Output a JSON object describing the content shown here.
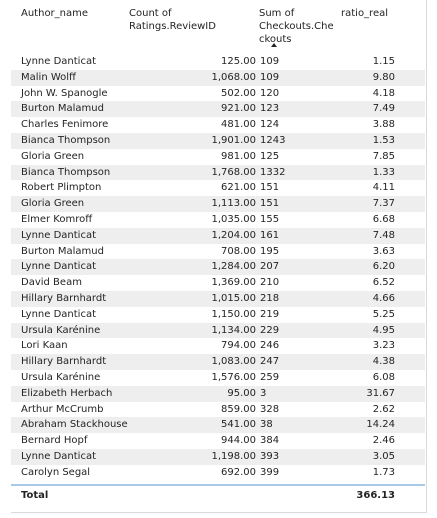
{
  "table": {
    "headers": {
      "author": "Author_name",
      "count": "Count of Ratings.ReviewID",
      "sum": "Sum of\nCheckouts.Che\nckouts",
      "ratio": "ratio_real"
    },
    "rows": [
      {
        "author": "Lynne Danticat",
        "count": "125.00",
        "sum": "109",
        "ratio": "1.15"
      },
      {
        "author": "Malin Wolff",
        "count": "1,068.00",
        "sum": "109",
        "ratio": "9.80"
      },
      {
        "author": "John W. Spanogle",
        "count": "502.00",
        "sum": "120",
        "ratio": "4.18"
      },
      {
        "author": "Burton Malamud",
        "count": "921.00",
        "sum": "123",
        "ratio": "7.49"
      },
      {
        "author": "Charles Fenimore",
        "count": "481.00",
        "sum": "124",
        "ratio": "3.88"
      },
      {
        "author": "Bianca Thompson",
        "count": "1,901.00",
        "sum": "1243",
        "ratio": "1.53"
      },
      {
        "author": "Gloria Green",
        "count": "981.00",
        "sum": "125",
        "ratio": "7.85"
      },
      {
        "author": "Bianca Thompson",
        "count": "1,768.00",
        "sum": "1332",
        "ratio": "1.33"
      },
      {
        "author": "Robert Plimpton",
        "count": "621.00",
        "sum": "151",
        "ratio": "4.11"
      },
      {
        "author": "Gloria Green",
        "count": "1,113.00",
        "sum": "151",
        "ratio": "7.37"
      },
      {
        "author": "Elmer Komroff",
        "count": "1,035.00",
        "sum": "155",
        "ratio": "6.68"
      },
      {
        "author": "Lynne Danticat",
        "count": "1,204.00",
        "sum": "161",
        "ratio": "7.48"
      },
      {
        "author": "Burton Malamud",
        "count": "708.00",
        "sum": "195",
        "ratio": "3.63"
      },
      {
        "author": "Lynne Danticat",
        "count": "1,284.00",
        "sum": "207",
        "ratio": "6.20"
      },
      {
        "author": "David Beam",
        "count": "1,369.00",
        "sum": "210",
        "ratio": "6.52"
      },
      {
        "author": "Hillary Barnhardt",
        "count": "1,015.00",
        "sum": "218",
        "ratio": "4.66"
      },
      {
        "author": "Lynne Danticat",
        "count": "1,150.00",
        "sum": "219",
        "ratio": "5.25"
      },
      {
        "author": "Ursula Karénine",
        "count": "1,134.00",
        "sum": "229",
        "ratio": "4.95"
      },
      {
        "author": "Lori Kaan",
        "count": "794.00",
        "sum": "246",
        "ratio": "3.23"
      },
      {
        "author": "Hillary Barnhardt",
        "count": "1,083.00",
        "sum": "247",
        "ratio": "4.38"
      },
      {
        "author": "Ursula Karénine",
        "count": "1,576.00",
        "sum": "259",
        "ratio": "6.08"
      },
      {
        "author": "Elizabeth Herbach",
        "count": "95.00",
        "sum": "3",
        "ratio": "31.67"
      },
      {
        "author": "Arthur McCrumb",
        "count": "859.00",
        "sum": "328",
        "ratio": "2.62"
      },
      {
        "author": "Abraham Stackhouse",
        "count": "541.00",
        "sum": "38",
        "ratio": "14.24"
      },
      {
        "author": "Bernard Hopf",
        "count": "944.00",
        "sum": "384",
        "ratio": "2.46"
      },
      {
        "author": "Lynne Danticat",
        "count": "1,198.00",
        "sum": "393",
        "ratio": "3.05"
      },
      {
        "author": "Carolyn Segal",
        "count": "692.00",
        "sum": "399",
        "ratio": "1.73"
      }
    ],
    "total": {
      "label": "Total",
      "ratio": "366.13"
    },
    "sort": {
      "column": "sum",
      "direction": "ascending",
      "icon": "sort-ascending-icon"
    },
    "colors": {
      "stripe": "#eeeeee",
      "total_border": "#a9c9e8",
      "text": "#252423"
    }
  }
}
